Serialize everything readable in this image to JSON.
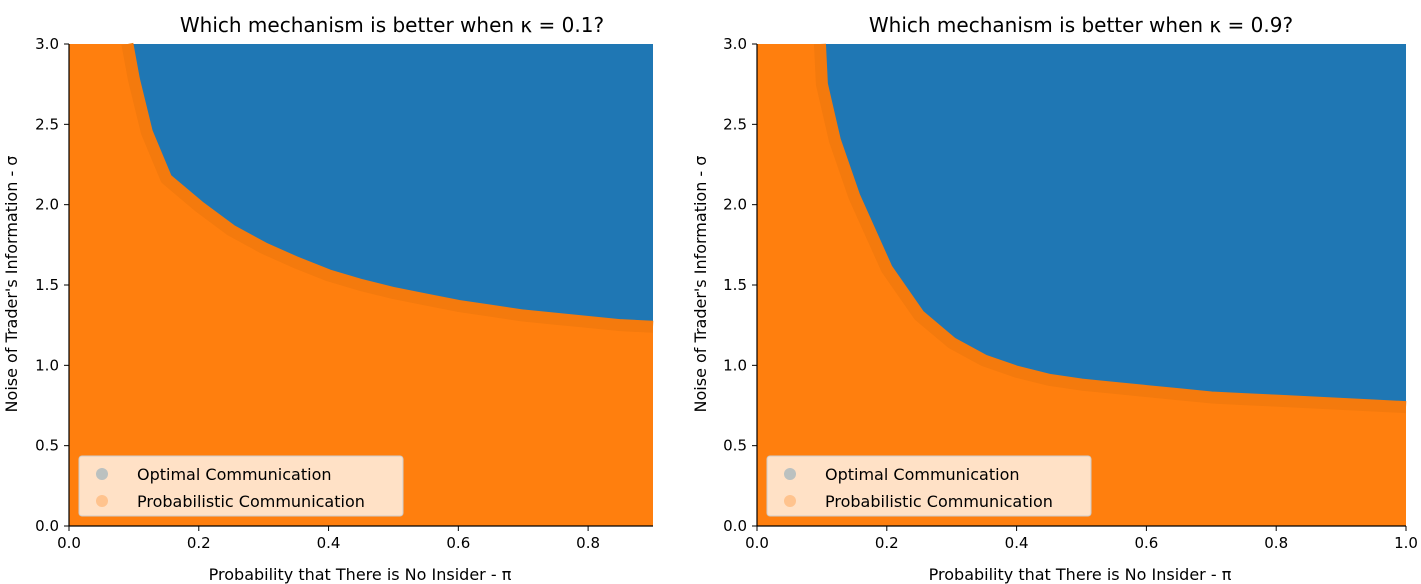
{
  "chart_data": [
    {
      "type": "area",
      "title": "Which mechanism is better when κ = 0.1?",
      "xlabel": "Probability that There is No Insider - π",
      "ylabel": "Noise of Trader's Information - σ",
      "xlim": [
        0.0,
        0.9
      ],
      "ylim": [
        0.0,
        3.0
      ],
      "xticks": [
        "0.0",
        "0.2",
        "0.4",
        "0.6",
        "0.8"
      ],
      "yticks": [
        "0.0",
        "0.5",
        "1.0",
        "1.5",
        "2.0",
        "2.5",
        "3.0"
      ],
      "legend_position": "lower-left",
      "series": [
        {
          "name": "Optimal Communication",
          "color": "#1f77b4",
          "region": "above boundary"
        },
        {
          "name": "Probabilistic Communication",
          "color": "#ff7f0e",
          "region": "below boundary"
        }
      ],
      "boundary": {
        "x": [
          0.09,
          0.1,
          0.12,
          0.15,
          0.2,
          0.25,
          0.3,
          0.35,
          0.4,
          0.45,
          0.5,
          0.55,
          0.6,
          0.65,
          0.7,
          0.75,
          0.8,
          0.85,
          0.9
        ],
        "y": [
          3.0,
          2.78,
          2.45,
          2.16,
          1.99,
          1.84,
          1.73,
          1.64,
          1.56,
          1.5,
          1.45,
          1.41,
          1.37,
          1.34,
          1.31,
          1.29,
          1.27,
          1.25,
          1.24
        ]
      }
    },
    {
      "type": "area",
      "title": "Which mechanism is better when κ = 0.9?",
      "xlabel": "Probability that There is No Insider - π",
      "ylabel": "Noise of Trader's Information - σ",
      "xlim": [
        0.0,
        1.0
      ],
      "ylim": [
        0.0,
        3.0
      ],
      "xticks": [
        "0.0",
        "0.2",
        "0.4",
        "0.6",
        "0.8",
        "1.0"
      ],
      "yticks": [
        "0.0",
        "0.5",
        "1.0",
        "1.5",
        "2.0",
        "2.5",
        "3.0"
      ],
      "legend_position": "lower-left",
      "series": [
        {
          "name": "Optimal Communication",
          "color": "#1f77b4",
          "region": "above boundary"
        },
        {
          "name": "Probabilistic Communication",
          "color": "#ff7f0e",
          "region": "below boundary"
        }
      ],
      "boundary": {
        "x": [
          0.097,
          0.1,
          0.12,
          0.15,
          0.18,
          0.2,
          0.25,
          0.3,
          0.35,
          0.4,
          0.45,
          0.5,
          0.55,
          0.6,
          0.65,
          0.7,
          0.75,
          0.8,
          0.85,
          0.9,
          0.95,
          1.0
        ],
        "y": [
          3.0,
          2.75,
          2.4,
          2.05,
          1.78,
          1.6,
          1.31,
          1.14,
          1.03,
          0.96,
          0.91,
          0.88,
          0.86,
          0.84,
          0.82,
          0.8,
          0.79,
          0.78,
          0.77,
          0.76,
          0.75,
          0.74
        ]
      }
    }
  ]
}
